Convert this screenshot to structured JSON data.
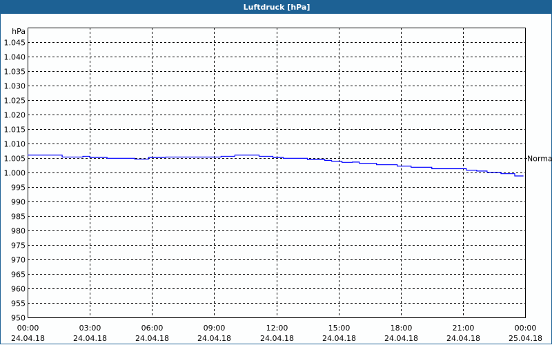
{
  "window": {
    "title": "Luftdruck [hPa]"
  },
  "chart_data": {
    "type": "line",
    "title": "Luftdruck [hPa]",
    "ylabel": "hPa",
    "ylim": [
      950,
      1050
    ],
    "yticks": [
      "950",
      "955",
      "960",
      "965",
      "970",
      "975",
      "980",
      "985",
      "990",
      "995",
      "1.000",
      "1.005",
      "1.010",
      "1.015",
      "1.020",
      "1.025",
      "1.030",
      "1.035",
      "1.040",
      "1.045"
    ],
    "ytick_values": [
      950,
      955,
      960,
      965,
      970,
      975,
      980,
      985,
      990,
      995,
      1000,
      1005,
      1010,
      1015,
      1020,
      1025,
      1030,
      1035,
      1040,
      1045
    ],
    "xlim": [
      "24.04.18 00:00",
      "25.04.18 00:00"
    ],
    "xticks": [
      {
        "time": "00:00",
        "date": "24.04.18"
      },
      {
        "time": "03:00",
        "date": "24.04.18"
      },
      {
        "time": "06:00",
        "date": "24.04.18"
      },
      {
        "time": "09:00",
        "date": "24.04.18"
      },
      {
        "time": "12:00",
        "date": "24.04.18"
      },
      {
        "time": "15:00",
        "date": "24.04.18"
      },
      {
        "time": "18:00",
        "date": "24.04.18"
      },
      {
        "time": "21:00",
        "date": "24.04.18"
      },
      {
        "time": "00:00",
        "date": "25.04.18"
      }
    ],
    "grid": true,
    "reference_line": {
      "label": "Normal",
      "value": 1005
    },
    "series_color": "#0000ff",
    "series": [
      {
        "x": [
          "00:00",
          "01:40",
          "02:40",
          "03:00",
          "03:50",
          "05:10",
          "05:50",
          "06:40",
          "09:20",
          "10:00",
          "11:10",
          "11:50",
          "12:20",
          "13:30",
          "14:20",
          "14:40",
          "15:10",
          "15:40",
          "16:00",
          "16:50",
          "17:50",
          "18:30",
          "19:30",
          "21:10",
          "21:40",
          "22:10",
          "22:50",
          "23:30",
          "23:50"
        ],
        "y": [
          1006.0,
          1005.3,
          1005.6,
          1005.2,
          1004.9,
          1004.6,
          1005.2,
          1005.3,
          1005.6,
          1006.0,
          1005.6,
          1005.2,
          1004.9,
          1004.5,
          1004.2,
          1003.9,
          1003.5,
          1003.6,
          1003.2,
          1002.7,
          1002.2,
          1001.8,
          1001.3,
          1000.8,
          1000.5,
          1000.1,
          999.6,
          998.8,
          998.8
        ]
      }
    ]
  }
}
